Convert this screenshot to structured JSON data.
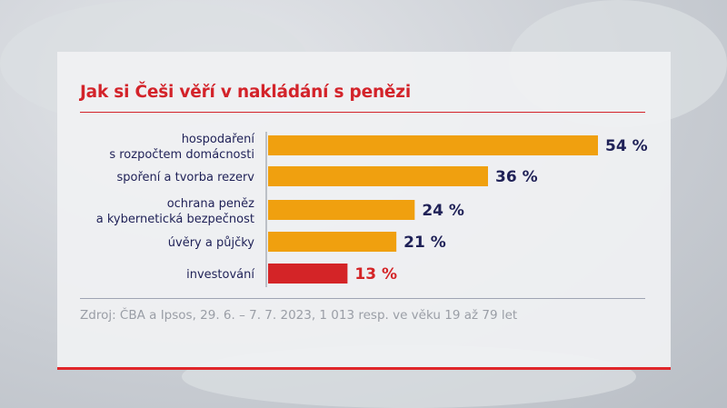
{
  "chart_data": {
    "type": "bar",
    "orientation": "horizontal",
    "title": "Jak si Češi věří v nakládání s penězi",
    "categories": [
      [
        "hospodaření",
        "s rozpočtem domácnosti"
      ],
      [
        "spoření a tvorba rezerv"
      ],
      [
        "ochrana peněz",
        "a kybernetická bezpečnost"
      ],
      [
        "úvěry a půjčky"
      ],
      [
        "investování"
      ]
    ],
    "values": [
      54,
      36,
      24,
      21,
      13
    ],
    "value_labels": [
      "54 %",
      "36 %",
      "24 %",
      "21 %",
      "13 %"
    ],
    "bar_colors": [
      "#f0a00f",
      "#f0a00f",
      "#f0a00f",
      "#f0a00f",
      "#d42427"
    ],
    "label_colors": [
      "#1f2157",
      "#1f2157",
      "#1f2157",
      "#1f2157",
      "#d42427"
    ],
    "xlim": [
      0,
      54
    ],
    "grid": false,
    "source": "Zdroj: ČBA a Ipsos, 29. 6. – 7. 7. 2023, 1 013 resp. ve věku 19 až 79 let"
  }
}
